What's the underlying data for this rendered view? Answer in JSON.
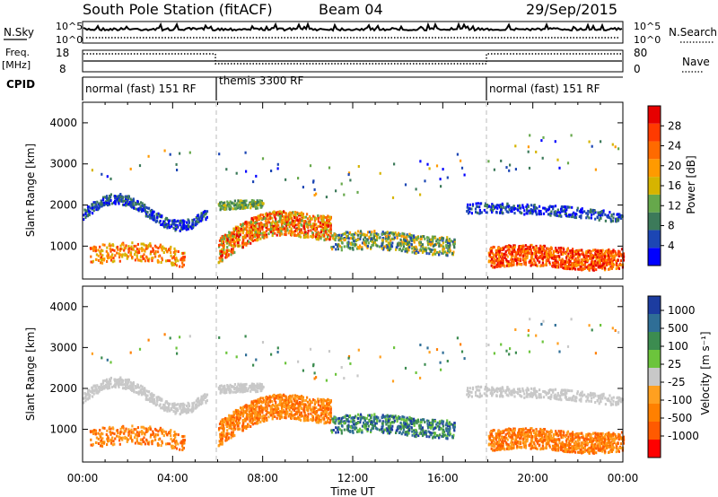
{
  "header": {
    "station": "South Pole Station (fitACF)",
    "beam": "Beam 04",
    "date": "29/Sep/2015"
  },
  "strips": {
    "nsky": {
      "label": "N.Sky",
      "scale_top": "10^5",
      "scale_bottom": "10^0",
      "right_top": "10^5",
      "right_bottom": "10^0",
      "right_label": "N.Search"
    },
    "freq": {
      "label_line1": "Freq.",
      "label_line2": "[MHz]",
      "left_top": "18",
      "left_bottom": "8",
      "right_top": "80",
      "right_bottom": "0",
      "right_label": "Nave"
    },
    "cpid": {
      "label": "CPID",
      "segments": [
        {
          "text": "normal (fast) 151 RF"
        },
        {
          "text": "themis 3300 RF"
        },
        {
          "text": "normal (fast) 151 RF"
        }
      ]
    }
  },
  "colors": {
    "power_scale": [
      "#0000ff",
      "#1c46b4",
      "#3c7a5a",
      "#66a84b",
      "#d6b400",
      "#ff9a00",
      "#ff6a00",
      "#ff3a00",
      "#e60000"
    ],
    "velocity_scale": [
      "#1c3ca0",
      "#2f6e96",
      "#3c8c50",
      "#6cc43c",
      "#c8c8c8",
      "#ffa020",
      "#ff8000",
      "#ff5a00",
      "#ff0000"
    ]
  },
  "chart_data": [
    {
      "type": "heatmap",
      "panel": "power",
      "ylabel": "Slant Range [km]",
      "xlabel": "Time UT",
      "x_ticks": [
        "00:00",
        "04:00",
        "08:00",
        "12:00",
        "16:00",
        "20:00",
        "00:00"
      ],
      "y_ticks": [
        "1000",
        "2000",
        "3000",
        "4000"
      ],
      "ylim": [
        200,
        4500
      ],
      "colorbar": {
        "label": "Power [dB]",
        "ticks": [
          "4",
          "8",
          "12",
          "16",
          "20",
          "24",
          "28"
        ],
        "range": [
          0,
          32
        ]
      },
      "mode_boundaries_ut": [
        6.0,
        18.0
      ]
    },
    {
      "type": "heatmap",
      "panel": "velocity",
      "ylabel": "Slant Range [km]",
      "xlabel": "Time UT",
      "x_ticks": [
        "00:00",
        "04:00",
        "08:00",
        "12:00",
        "16:00",
        "20:00",
        "00:00"
      ],
      "y_ticks": [
        "1000",
        "2000",
        "3000",
        "4000"
      ],
      "ylim": [
        200,
        4500
      ],
      "colorbar": {
        "label": "Velocity [m s⁻¹]",
        "ticks": [
          "1000",
          "500",
          "100",
          "25",
          "-25",
          "-100",
          "-500",
          "-1000"
        ]
      },
      "mode_boundaries_ut": [
        6.0,
        18.0
      ]
    }
  ]
}
